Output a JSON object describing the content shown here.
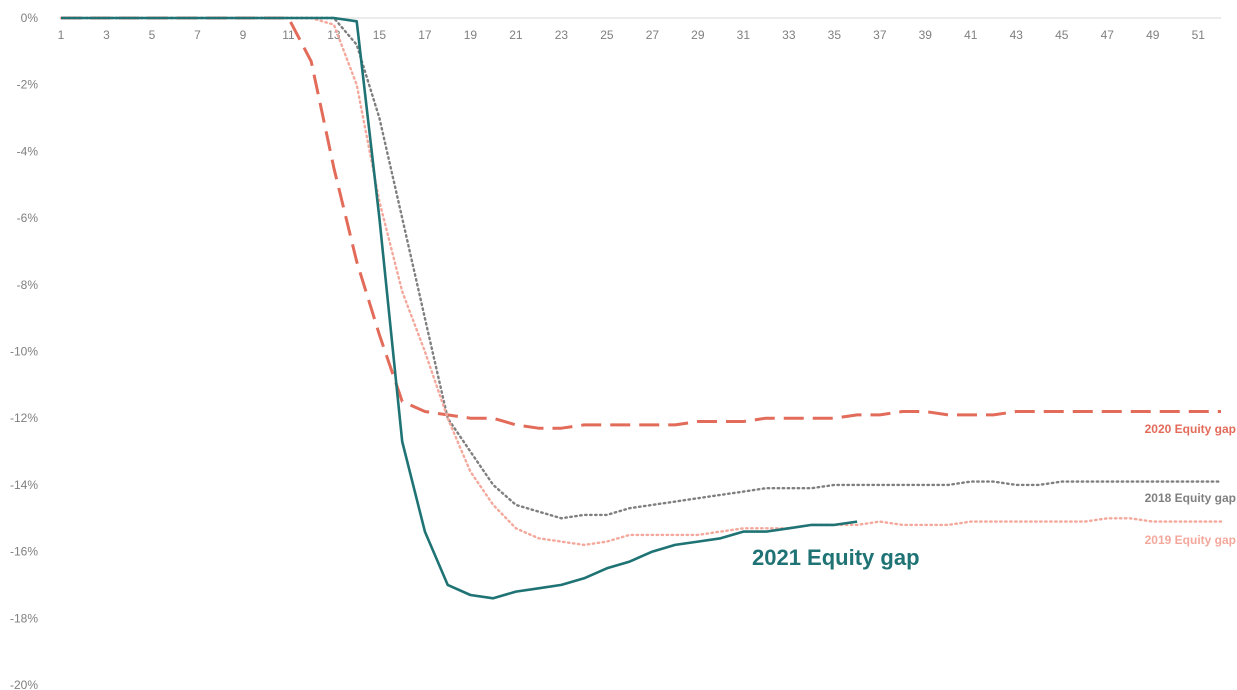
{
  "chart_data": {
    "type": "line",
    "title": "",
    "xlabel": "",
    "ylabel": "",
    "x_range": [
      1,
      52
    ],
    "x_tick_labels": [
      "1",
      "3",
      "5",
      "7",
      "9",
      "11",
      "13",
      "15",
      "17",
      "19",
      "21",
      "23",
      "25",
      "27",
      "29",
      "31",
      "33",
      "35",
      "37",
      "39",
      "41",
      "43",
      "45",
      "47",
      "49",
      "51"
    ],
    "ylim": [
      -20,
      0
    ],
    "y_tick_labels": [
      "0%",
      "-2%",
      "-4%",
      "-6%",
      "-8%",
      "-10%",
      "-12%",
      "-14%",
      "-16%",
      "-18%",
      "-20%"
    ],
    "y_unit": "%",
    "grid": false,
    "series": [
      {
        "name": "2020 Equity gap",
        "color": "#e26b5a",
        "style": "dashed",
        "x": [
          1,
          2,
          3,
          4,
          5,
          6,
          7,
          8,
          9,
          10,
          11,
          12,
          13,
          14,
          15,
          16,
          17,
          18,
          19,
          20,
          21,
          22,
          23,
          24,
          25,
          26,
          27,
          28,
          29,
          30,
          31,
          32,
          33,
          34,
          35,
          36,
          37,
          38,
          39,
          40,
          41,
          42,
          43,
          44,
          45,
          46,
          47,
          48,
          49,
          50,
          51,
          52
        ],
        "values": [
          0,
          0,
          0,
          0,
          0,
          0,
          0,
          0,
          0,
          0,
          0,
          -1.3,
          -4.5,
          -7.3,
          -9.5,
          -11.5,
          -11.8,
          -11.9,
          -12.0,
          -12.0,
          -12.2,
          -12.3,
          -12.3,
          -12.2,
          -12.2,
          -12.2,
          -12.2,
          -12.2,
          -12.1,
          -12.1,
          -12.1,
          -12.0,
          -12.0,
          -12.0,
          -12.0,
          -11.9,
          -11.9,
          -11.8,
          -11.8,
          -11.9,
          -11.9,
          -11.9,
          -11.8,
          -11.8,
          -11.8,
          -11.8,
          -11.8,
          -11.8,
          -11.8,
          -11.8,
          -11.8,
          -11.8
        ]
      },
      {
        "name": "2018 Equity gap",
        "color": "#7f7f7f",
        "style": "dotted",
        "x": [
          1,
          2,
          3,
          4,
          5,
          6,
          7,
          8,
          9,
          10,
          11,
          12,
          13,
          14,
          15,
          16,
          17,
          18,
          19,
          20,
          21,
          22,
          23,
          24,
          25,
          26,
          27,
          28,
          29,
          30,
          31,
          32,
          33,
          34,
          35,
          36,
          37,
          38,
          39,
          40,
          41,
          42,
          43,
          44,
          45,
          46,
          47,
          48,
          49,
          50,
          51,
          52
        ],
        "values": [
          0,
          0,
          0,
          0,
          0,
          0,
          0,
          0,
          0,
          0,
          0,
          0,
          0,
          -0.8,
          -3.0,
          -6.0,
          -9.0,
          -12.0,
          -13.0,
          -14.0,
          -14.6,
          -14.8,
          -15.0,
          -14.9,
          -14.9,
          -14.7,
          -14.6,
          -14.5,
          -14.4,
          -14.3,
          -14.2,
          -14.1,
          -14.1,
          -14.1,
          -14.0,
          -14.0,
          -14.0,
          -14.0,
          -14.0,
          -14.0,
          -13.9,
          -13.9,
          -14.0,
          -14.0,
          -13.9,
          -13.9,
          -13.9,
          -13.9,
          -13.9,
          -13.9,
          -13.9,
          -13.9
        ]
      },
      {
        "name": "2019 Equity gap",
        "color": "#f4a89c",
        "style": "dotted",
        "x": [
          1,
          2,
          3,
          4,
          5,
          6,
          7,
          8,
          9,
          10,
          11,
          12,
          13,
          14,
          15,
          16,
          17,
          18,
          19,
          20,
          21,
          22,
          23,
          24,
          25,
          26,
          27,
          28,
          29,
          30,
          31,
          32,
          33,
          34,
          35,
          36,
          37,
          38,
          39,
          40,
          41,
          42,
          43,
          44,
          45,
          46,
          47,
          48,
          49,
          50,
          51,
          52
        ],
        "values": [
          0,
          0,
          0,
          0,
          0,
          0,
          0,
          0,
          0,
          0,
          0,
          0,
          -0.2,
          -2.0,
          -5.5,
          -8.2,
          -10.0,
          -12.0,
          -13.6,
          -14.6,
          -15.3,
          -15.6,
          -15.7,
          -15.8,
          -15.7,
          -15.5,
          -15.5,
          -15.5,
          -15.5,
          -15.4,
          -15.3,
          -15.3,
          -15.3,
          -15.2,
          -15.2,
          -15.2,
          -15.1,
          -15.2,
          -15.2,
          -15.2,
          -15.1,
          -15.1,
          -15.1,
          -15.1,
          -15.1,
          -15.1,
          -15.0,
          -15.0,
          -15.1,
          -15.1,
          -15.1,
          -15.1
        ]
      },
      {
        "name": "2021 Equity gap",
        "color": "#1f7374",
        "style": "solid",
        "x": [
          1,
          2,
          3,
          4,
          5,
          6,
          7,
          8,
          9,
          10,
          11,
          12,
          13,
          14,
          15,
          16,
          17,
          18,
          19,
          20,
          21,
          22,
          23,
          24,
          25,
          26,
          27,
          28,
          29,
          30,
          31,
          32,
          33,
          34,
          35,
          36
        ],
        "values": [
          0,
          0,
          0,
          0,
          0,
          0,
          0,
          0,
          0,
          0,
          0,
          0,
          0,
          -0.1,
          -6.0,
          -12.7,
          -15.4,
          -17.0,
          -17.3,
          -17.4,
          -17.2,
          -17.1,
          -17.0,
          -16.8,
          -16.5,
          -16.3,
          -16.0,
          -15.8,
          -15.7,
          -15.6,
          -15.4,
          -15.4,
          -15.3,
          -15.2,
          -15.2,
          -15.1
        ]
      }
    ]
  }
}
